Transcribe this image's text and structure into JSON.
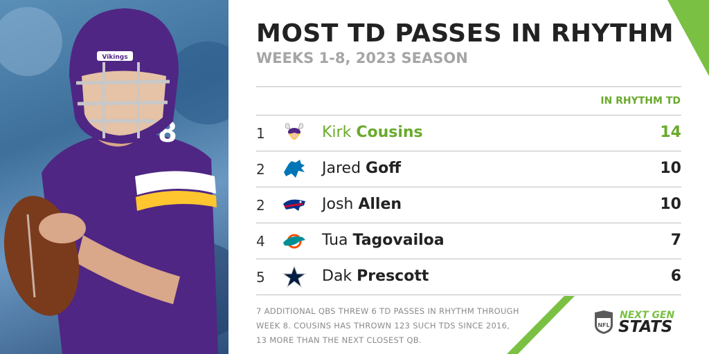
{
  "header": {
    "title": "MOST TD PASSES IN RHYTHM",
    "subtitle": "WEEKS 1-8, 2023 SEASON"
  },
  "table": {
    "column_header": "IN RHYTHM TD",
    "rows": [
      {
        "rank": "1",
        "team_icon": "vikings-logo-icon",
        "first": "Kirk",
        "last": "Cousins",
        "value": "14",
        "highlight": true
      },
      {
        "rank": "2",
        "team_icon": "lions-logo-icon",
        "first": "Jared",
        "last": "Goff",
        "value": "10",
        "highlight": false
      },
      {
        "rank": "2",
        "team_icon": "bills-logo-icon",
        "first": "Josh",
        "last": "Allen",
        "value": "10",
        "highlight": false
      },
      {
        "rank": "4",
        "team_icon": "dolphins-logo-icon",
        "first": "Tua",
        "last": "Tagovailoa",
        "value": "7",
        "highlight": false
      },
      {
        "rank": "5",
        "team_icon": "cowboys-logo-icon",
        "first": "Dak",
        "last": "Prescott",
        "value": "6",
        "highlight": false
      }
    ]
  },
  "footnote": "7 ADDITIONAL QBS THREW 6 TD PASSES IN RHYTHM THROUGH WEEK 8. COUSINS HAS THROWN 123 SUCH TDS SINCE 2016, 13 MORE THAN THE NEXT CLOSEST QB.",
  "photo": {
    "helmet_text": "Vikings",
    "jersey_number": "8"
  },
  "brand": {
    "league": "NFL",
    "line1": "NEXT GEN",
    "line2": "STATS"
  },
  "colors": {
    "accent": "#6aaa2c",
    "vikings_purple": "#4f2683",
    "vikings_gold": "#ffc62f"
  }
}
